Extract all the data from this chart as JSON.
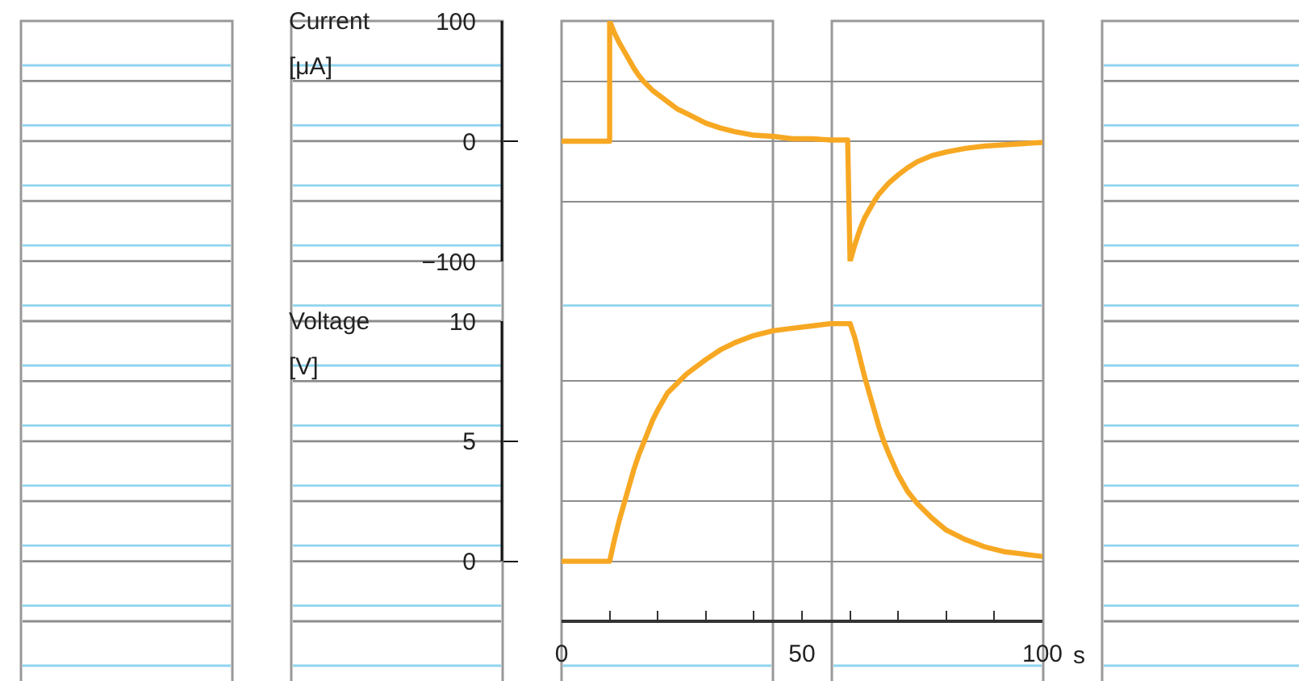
{
  "chart_data": [
    {
      "type": "line",
      "x": [
        0,
        10,
        10,
        11,
        12,
        13,
        14,
        15,
        16,
        17,
        18,
        19,
        20,
        22,
        24,
        26,
        28,
        30,
        33,
        36,
        40,
        44,
        48,
        52,
        56,
        59.5,
        60,
        61,
        62,
        63,
        64,
        65,
        66,
        68,
        70,
        72,
        74,
        77,
        80,
        84,
        88,
        92,
        96,
        100
      ],
      "values": [
        0,
        0,
        100,
        90,
        82,
        75,
        68,
        61,
        55,
        50,
        46,
        42,
        39,
        33,
        27,
        23,
        19,
        15,
        11,
        8,
        5,
        4,
        2,
        2,
        1,
        1,
        -100,
        -86,
        -74,
        -64,
        -57,
        -50,
        -44,
        -35,
        -28,
        -22,
        -17,
        -12,
        -9,
        -6,
        -4,
        -3,
        -2,
        -1
      ],
      "color": "#f7a823",
      "ylabel": "Current [μA]",
      "xlim": [
        0,
        100
      ],
      "ylim": [
        -100,
        100
      ],
      "yticks": [
        100,
        {
          "value": 50,
          "label": null
        },
        0,
        {
          "value": -50,
          "label": null
        },
        {
          "value": -100,
          "label": "−100"
        }
      ],
      "grid": "y",
      "tick_labels": "y"
    },
    {
      "type": "line",
      "x": [
        0,
        10,
        11,
        12,
        13,
        14,
        15,
        16,
        17,
        18,
        19,
        20,
        22,
        24,
        26,
        28,
        30,
        33,
        36,
        40,
        44,
        48,
        52,
        56,
        60,
        61,
        62,
        63,
        64,
        65,
        66,
        67,
        68,
        70,
        72,
        74,
        77,
        80,
        84,
        88,
        92,
        96,
        100
      ],
      "values": [
        0,
        0,
        0.9,
        1.7,
        2.4,
        3.1,
        3.8,
        4.4,
        4.9,
        5.4,
        5.9,
        6.3,
        7,
        7.4,
        7.8,
        8.1,
        8.4,
        8.8,
        9.1,
        9.4,
        9.6,
        9.7,
        9.8,
        9.9,
        9.9,
        9.3,
        8.5,
        7.7,
        7,
        6.3,
        5.6,
        5,
        4.5,
        3.6,
        2.9,
        2.4,
        1.8,
        1.3,
        0.9,
        0.6,
        0.4,
        0.3,
        0.2
      ],
      "color": "#f7a823",
      "xlabel": "s",
      "ylabel": "Voltage [V]",
      "xlim": [
        0,
        100
      ],
      "ylim": [
        -2.5,
        10
      ],
      "xticks": [
        0,
        {
          "value": 10,
          "label": null
        },
        {
          "value": 20,
          "label": null
        },
        {
          "value": 30,
          "label": null
        },
        {
          "value": 40,
          "label": null
        },
        50,
        {
          "value": 60,
          "label": null
        },
        {
          "value": 70,
          "label": null
        },
        {
          "value": 80,
          "label": null
        },
        {
          "value": 90,
          "label": null
        },
        100
      ],
      "yticks": [
        0,
        {
          "value": 2.5,
          "label": null
        },
        5,
        {
          "value": 7.5,
          "label": null
        },
        10
      ],
      "grid": "y"
    }
  ]
}
